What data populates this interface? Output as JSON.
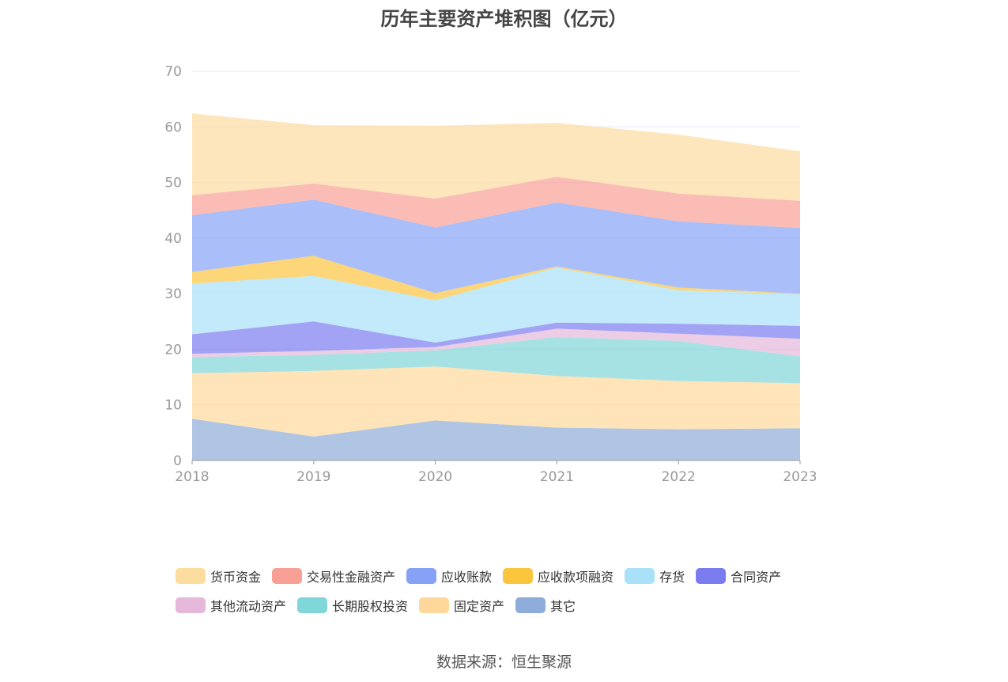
{
  "title": "历年主要资产堆积图（亿元）",
  "source": "数据来源：恒生聚源",
  "chart_data": {
    "type": "area",
    "stacked": true,
    "title": "历年主要资产堆积图（亿元）",
    "categories": [
      "2018",
      "2019",
      "2020",
      "2021",
      "2022",
      "2023"
    ],
    "ylim": [
      0,
      70
    ],
    "yticks": [
      "0",
      "10",
      "20",
      "30",
      "40",
      "50",
      "60",
      "70"
    ],
    "legend_position": "bottom",
    "series": [
      {
        "name": "其它",
        "color": "#8eacd9",
        "values": [
          7.5,
          4.3,
          7.2,
          5.9,
          5.6,
          5.8
        ]
      },
      {
        "name": "固定资产",
        "color": "#fdd89a",
        "values": [
          8.2,
          11.8,
          9.7,
          9.3,
          8.7,
          8.1
        ]
      },
      {
        "name": "长期股权投资",
        "color": "#80d6d9",
        "values": [
          2.9,
          2.9,
          2.9,
          7.0,
          7.2,
          4.8
        ]
      },
      {
        "name": "其他流动资产",
        "color": "#e6b8da",
        "values": [
          0.6,
          0.7,
          0.6,
          1.5,
          1.3,
          3.2
        ]
      },
      {
        "name": "合同资产",
        "color": "#7b7cf0",
        "values": [
          3.5,
          5.3,
          0.8,
          1.1,
          1.8,
          2.3
        ]
      },
      {
        "name": "存货",
        "color": "#a8e1f8",
        "values": [
          9.1,
          8.2,
          7.6,
          9.9,
          6.0,
          5.7
        ]
      },
      {
        "name": "应收款项融资",
        "color": "#fbc53e",
        "values": [
          2.1,
          3.6,
          1.3,
          0.2,
          0.5,
          0.1
        ]
      },
      {
        "name": "应收账款",
        "color": "#86a2f6",
        "values": [
          10.2,
          10.1,
          11.8,
          11.5,
          11.9,
          11.8
        ]
      },
      {
        "name": "交易性金融资产",
        "color": "#f9a096",
        "values": [
          3.6,
          2.9,
          5.2,
          4.6,
          5.0,
          4.9
        ]
      },
      {
        "name": "货币资金",
        "color": "#fddca0",
        "values": [
          14.7,
          10.5,
          13.1,
          9.7,
          10.6,
          8.9
        ]
      }
    ]
  },
  "legend_rows": [
    [
      "货币资金",
      "交易性金融资产",
      "应收账款",
      "应收款项融资",
      "存货",
      "合同资产"
    ],
    [
      "其他流动资产",
      "长期股权投资",
      "固定资产",
      "其它"
    ]
  ]
}
